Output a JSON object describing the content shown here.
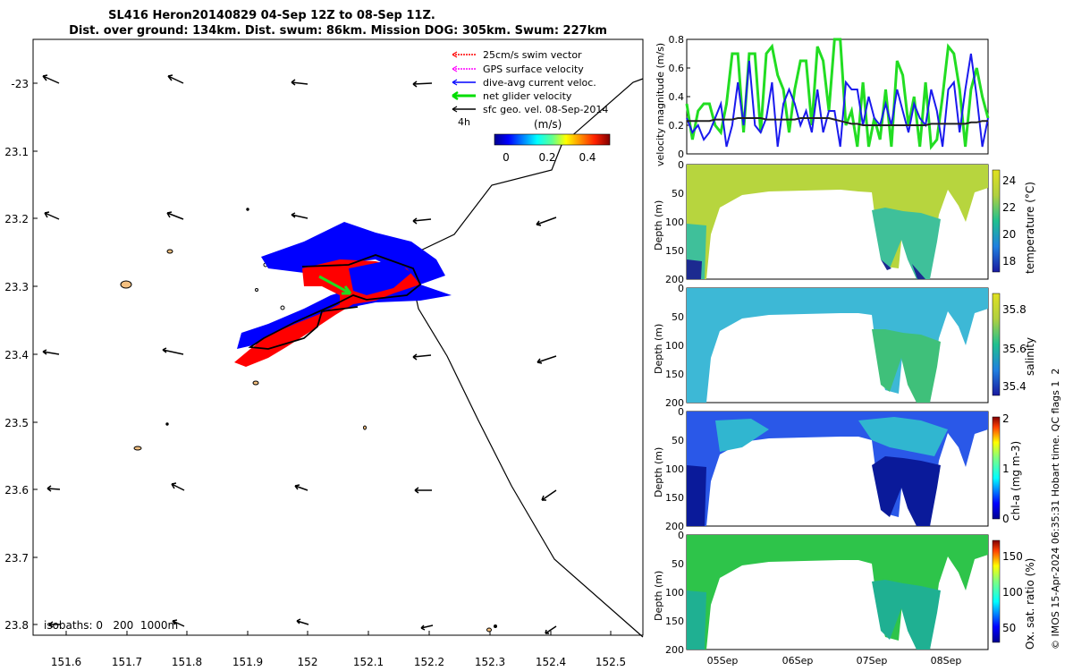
{
  "title": {
    "line1": "SL416 Heron20140829 04-Sep 12Z to 08-Sep 11Z.",
    "line2": "Dist. over ground: 134km. Dist. swum: 86km. Mission DOG: 305km. Swum: 227km"
  },
  "legend": {
    "items": [
      {
        "label": "25cm/s swim vector",
        "color": "#ff0000"
      },
      {
        "label": "GPS surface velocity",
        "color": "#ff00ff"
      },
      {
        "label": "dive-avg current veloc.",
        "color": "#0000ff"
      },
      {
        "label": "net glider velocity",
        "color": "#00dd00"
      },
      {
        "label": "sfc geo. vel. 08-Sep-2014",
        "color": "#000000"
      }
    ],
    "interval_label": "4h"
  },
  "colorbar": {
    "label": "(m/s)",
    "ticks": [
      "0",
      "0.2",
      "0.4"
    ]
  },
  "isobaths_label": "isobaths: 0   200  1000m",
  "copyright": "© IMOS 15-Apr-2024 06:35:31 Hobart time. QC flags 1  2",
  "chart_data": [
    {
      "type": "map",
      "x_ticks": [
        "151.6",
        "151.7",
        "151.8",
        "151.9",
        "152",
        "152.1",
        "152.2",
        "152.3",
        "152.4",
        "152.5"
      ],
      "y_ticks": [
        "-23",
        "23.1",
        "23.2",
        "23.3",
        "23.4",
        "23.5",
        "23.6",
        "23.7",
        "23.8"
      ],
      "xlim": [
        151.56,
        152.54
      ],
      "ylim": [
        -23.85,
        -22.94
      ]
    },
    {
      "type": "line",
      "ylabel": "velocity magnitude (m/s)",
      "y_ticks": [
        "0",
        "0.2",
        "0.4",
        "0.6",
        "0.8"
      ],
      "ylim": [
        0,
        0.8
      ],
      "series": [
        {
          "name": "net glider velocity",
          "color": "#22dd22",
          "values": [
            0.35,
            0.1,
            0.3,
            0.35,
            0.35,
            0.2,
            0.15,
            0.35,
            0.7,
            0.7,
            0.15,
            0.7,
            0.7,
            0.15,
            0.7,
            0.75,
            0.55,
            0.45,
            0.15,
            0.45,
            0.65,
            0.65,
            0.2,
            0.75,
            0.65,
            0.3,
            0.8,
            0.8,
            0.2,
            0.3,
            0.05,
            0.5,
            0.05,
            0.25,
            0.1,
            0.45,
            0.05,
            0.65,
            0.55,
            0.2,
            0.4,
            0.05,
            0.5,
            0.05,
            0.1,
            0.4,
            0.75,
            0.7,
            0.45,
            0.05,
            0.45,
            0.6,
            0.4,
            0.25
          ]
        },
        {
          "name": "dive-avg current veloc.",
          "color": "#1a1aee",
          "values": [
            0.25,
            0.15,
            0.2,
            0.1,
            0.15,
            0.25,
            0.35,
            0.05,
            0.2,
            0.5,
            0.2,
            0.65,
            0.2,
            0.15,
            0.25,
            0.5,
            0.05,
            0.35,
            0.45,
            0.35,
            0.2,
            0.3,
            0.15,
            0.45,
            0.15,
            0.3,
            0.3,
            0.05,
            0.5,
            0.45,
            0.45,
            0.2,
            0.4,
            0.25,
            0.2,
            0.35,
            0.2,
            0.45,
            0.3,
            0.15,
            0.35,
            0.25,
            0.2,
            0.45,
            0.3,
            0.05,
            0.45,
            0.5,
            0.15,
            0.45,
            0.7,
            0.4,
            0.05,
            0.25
          ]
        },
        {
          "name": "sfc geo. vel. 08-Sep-2014",
          "color": "#222222",
          "values": [
            0.23,
            0.23,
            0.23,
            0.23,
            0.23,
            0.24,
            0.24,
            0.24,
            0.24,
            0.25,
            0.25,
            0.25,
            0.25,
            0.25,
            0.24,
            0.24,
            0.24,
            0.24,
            0.24,
            0.24,
            0.25,
            0.25,
            0.25,
            0.25,
            0.25,
            0.25,
            0.24,
            0.23,
            0.22,
            0.21,
            0.21,
            0.2,
            0.2,
            0.2,
            0.2,
            0.2,
            0.2,
            0.2,
            0.2,
            0.2,
            0.2,
            0.2,
            0.2,
            0.21,
            0.21,
            0.21,
            0.21,
            0.21,
            0.21,
            0.21,
            0.22,
            0.22,
            0.23,
            0.23
          ]
        }
      ]
    },
    {
      "type": "heatmap",
      "ylabel": "Depth (m)",
      "y_ticks": [
        "0",
        "50",
        "100",
        "150",
        "200"
      ],
      "colorbar_label": "temperature (°C)",
      "colorbar_ticks": [
        "24",
        "22",
        "20",
        "18"
      ]
    },
    {
      "type": "heatmap",
      "ylabel": "Depth (m)",
      "y_ticks": [
        "0",
        "50",
        "100",
        "150",
        "200"
      ],
      "colorbar_label": "salinity",
      "colorbar_ticks": [
        "35.8",
        "35.6",
        "35.4"
      ]
    },
    {
      "type": "heatmap",
      "ylabel": "Depth (m)",
      "y_ticks": [
        "0",
        "50",
        "100",
        "150",
        "200"
      ],
      "colorbar_label": "chl-a (mg m-3)",
      "colorbar_ticks": [
        "2",
        "1",
        "0"
      ]
    },
    {
      "type": "heatmap",
      "ylabel": "Depth (m)",
      "y_ticks": [
        "0",
        "50",
        "100",
        "150",
        "200"
      ],
      "colorbar_label": "Ox. sat. ratio (%)",
      "colorbar_ticks": [
        "150",
        "100",
        "50"
      ],
      "x_ticks": [
        "05Sep",
        "06Sep",
        "07Sep",
        "08Sep"
      ]
    }
  ]
}
